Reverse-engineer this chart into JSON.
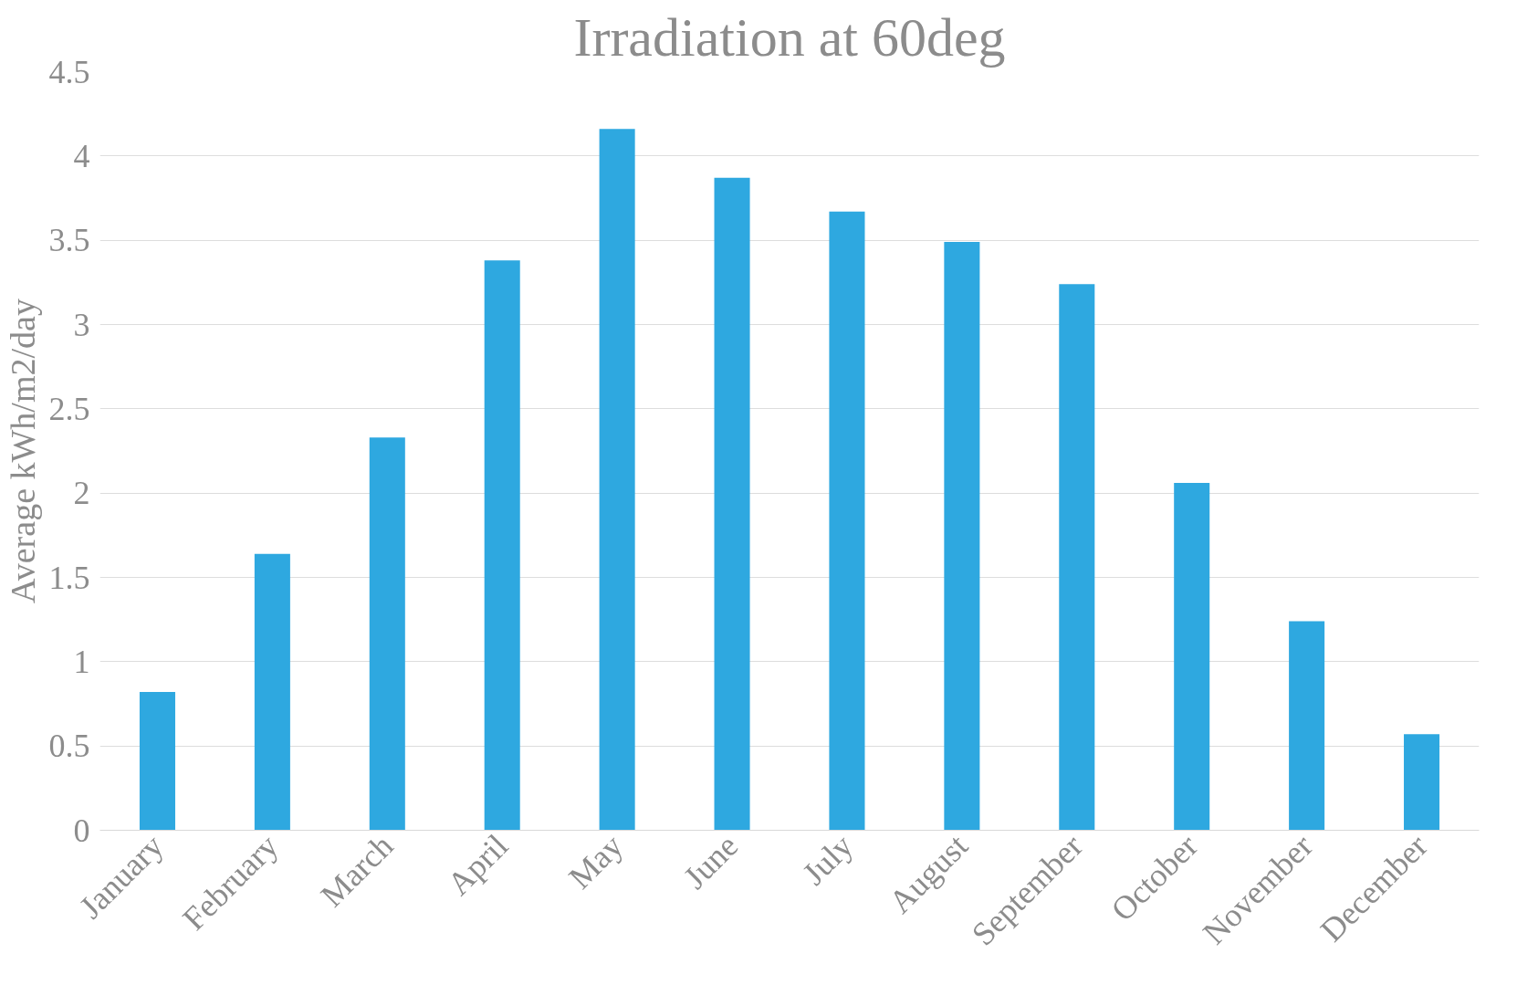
{
  "chart_data": {
    "type": "bar",
    "title": "Irradiation at 60deg",
    "ylabel": "Average kWh/m2/day",
    "categories": [
      "January",
      "February",
      "March",
      "April",
      "May",
      "June",
      "July",
      "August",
      "September",
      "October",
      "November",
      "December"
    ],
    "values": [
      0.82,
      1.64,
      2.33,
      3.38,
      4.16,
      3.87,
      3.67,
      3.49,
      3.24,
      2.06,
      1.24,
      0.57
    ],
    "color": "#2ea8e0",
    "ylim": [
      0,
      4.5
    ],
    "yticks": [
      0,
      0.5,
      1,
      1.5,
      2,
      2.5,
      3,
      3.5,
      4,
      4.5
    ],
    "grid": "y"
  }
}
